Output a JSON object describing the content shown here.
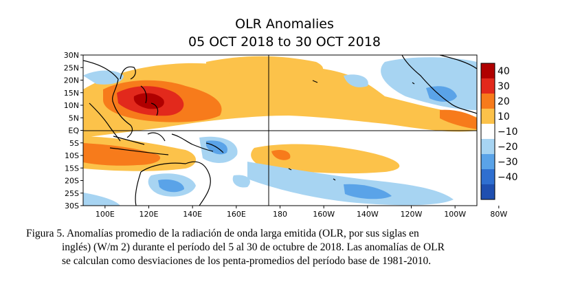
{
  "figure": {
    "title_line1": "OLR Anomalies",
    "title_line2": "05 OCT 2018 to 30 OCT 2018",
    "y_ticks": [
      "30N",
      "25N",
      "20N",
      "15N",
      "10N",
      "5N",
      "EQ",
      "5S",
      "10S",
      "15S",
      "20S",
      "25S",
      "30S"
    ],
    "x_ticks": [
      "100E",
      "120E",
      "140E",
      "160E",
      "180",
      "160W",
      "140W",
      "120W",
      "100W",
      "80W"
    ],
    "colorbar_labels": [
      "40",
      "30",
      "20",
      "10",
      "−10",
      "−20",
      "−30",
      "−40"
    ],
    "colors": {
      "pos40": "#b00000",
      "pos30": "#e2291c",
      "pos20": "#f77b1b",
      "pos10": "#fcc24a",
      "neg10": "#a7d4f2",
      "neg20": "#5aa3e8",
      "neg30": "#2f6fd0",
      "neg40": "#1f4fb0",
      "land": "#000000"
    }
  },
  "caption": {
    "line1": "Figura 5. Anomalías promedio de la radiación de onda larga emitida (OLR, por sus siglas en",
    "line2": "inglés) (W/m 2) durante el período del 5 al 30 de octubre de 2018. Las anomalías de OLR",
    "line3": "se calculan como desviaciones de los penta-promedios del período base de 1981-2010."
  }
}
